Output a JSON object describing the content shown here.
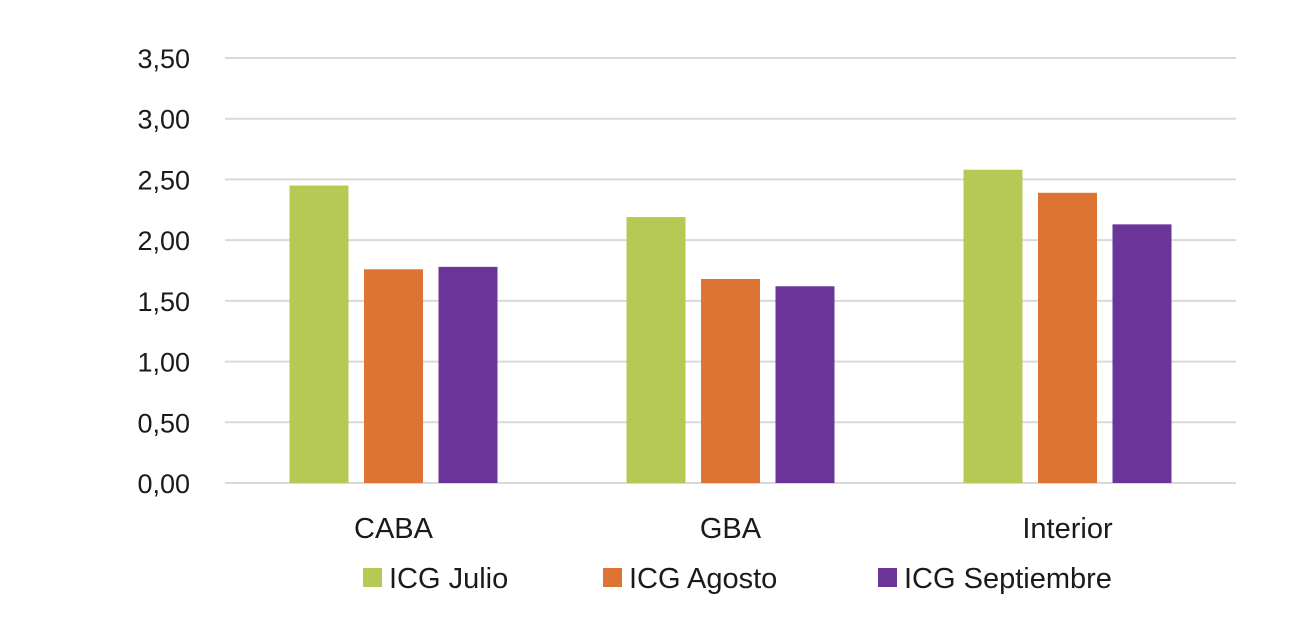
{
  "chart_data": {
    "type": "bar",
    "title": "",
    "xlabel": "",
    "ylabel": "",
    "categories": [
      "CABA",
      "GBA",
      "Interior"
    ],
    "series": [
      {
        "name": "ICG Julio",
        "color": "#b5c954",
        "values": [
          2.45,
          2.19,
          2.58
        ]
      },
      {
        "name": "ICG Agosto",
        "color": "#dd7433",
        "values": [
          1.76,
          1.68,
          2.39
        ]
      },
      {
        "name": "ICG Septiembre",
        "color": "#6b3499",
        "values": [
          1.78,
          1.62,
          2.13
        ]
      }
    ],
    "ylim": [
      0,
      3.5
    ],
    "yticks": [
      0,
      0.5,
      1.0,
      1.5,
      2.0,
      2.5,
      3.0,
      3.5
    ],
    "ytick_labels": [
      "0,00",
      "0,50",
      "1,00",
      "1,50",
      "2,00",
      "2,50",
      "3,00",
      "3,50"
    ],
    "grid": true,
    "legend": "bottom"
  }
}
